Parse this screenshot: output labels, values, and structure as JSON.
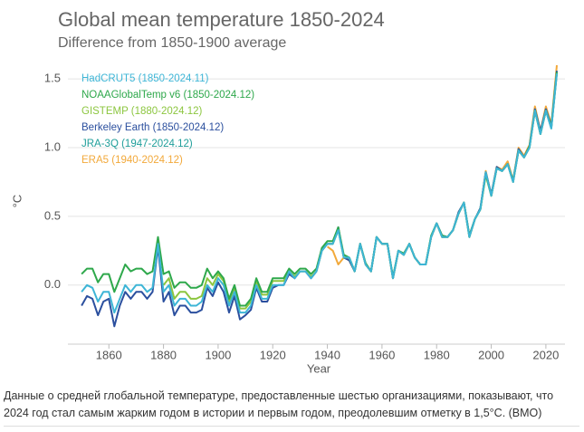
{
  "chart_data": {
    "type": "line",
    "title": "Global mean temperature 1850-2024",
    "subtitle": "Difference from 1850-1900 average",
    "xlabel": "Year",
    "ylabel": "°C",
    "x": [
      1850,
      1852,
      1854,
      1856,
      1858,
      1860,
      1862,
      1864,
      1866,
      1868,
      1870,
      1872,
      1874,
      1876,
      1878,
      1880,
      1882,
      1884,
      1886,
      1888,
      1890,
      1892,
      1894,
      1896,
      1898,
      1900,
      1902,
      1904,
      1906,
      1908,
      1910,
      1912,
      1914,
      1916,
      1918,
      1920,
      1922,
      1924,
      1926,
      1928,
      1930,
      1932,
      1934,
      1936,
      1938,
      1940,
      1942,
      1944,
      1946,
      1948,
      1950,
      1952,
      1954,
      1956,
      1958,
      1960,
      1962,
      1964,
      1966,
      1968,
      1970,
      1972,
      1974,
      1976,
      1978,
      1980,
      1982,
      1984,
      1986,
      1988,
      1990,
      1992,
      1994,
      1996,
      1998,
      2000,
      2002,
      2004,
      2006,
      2008,
      2010,
      2012,
      2014,
      2016,
      2018,
      2020,
      2022,
      2024
    ],
    "series": [
      {
        "name": "HadCRUT5 (1850-2024.11)",
        "color": "#3db5d6",
        "values": [
          -0.05,
          0.0,
          -0.02,
          -0.12,
          -0.05,
          -0.05,
          -0.2,
          -0.1,
          0.0,
          -0.05,
          0.0,
          0.0,
          -0.05,
          -0.02,
          0.3,
          -0.05,
          0.0,
          -0.15,
          -0.1,
          -0.1,
          -0.15,
          -0.15,
          -0.12,
          0.0,
          -0.05,
          0.05,
          0.0,
          -0.15,
          -0.05,
          -0.2,
          -0.2,
          -0.15,
          0.0,
          -0.1,
          -0.1,
          0.0,
          0.0,
          0.0,
          0.1,
          0.05,
          0.1,
          0.1,
          0.05,
          0.1,
          0.25,
          0.3,
          0.3,
          0.4,
          0.2,
          0.2,
          0.1,
          0.3,
          0.15,
          0.1,
          0.35,
          0.3,
          0.3,
          0.05,
          0.25,
          0.22,
          0.3,
          0.2,
          0.15,
          0.15,
          0.35,
          0.45,
          0.35,
          0.35,
          0.4,
          0.52,
          0.6,
          0.35,
          0.48,
          0.55,
          0.82,
          0.65,
          0.85,
          0.83,
          0.88,
          0.75,
          0.98,
          0.93,
          1.0,
          1.27,
          1.1,
          1.27,
          1.14,
          1.54
        ]
      },
      {
        "name": "NOAAGlobalTemp v6 (1850-2024.12)",
        "color": "#2ea84b",
        "values": [
          0.08,
          0.12,
          0.12,
          0.02,
          0.08,
          0.08,
          -0.05,
          0.05,
          0.15,
          0.1,
          0.12,
          0.12,
          0.08,
          0.1,
          0.35,
          0.08,
          0.1,
          -0.02,
          0.02,
          0.02,
          -0.02,
          -0.02,
          0.0,
          0.12,
          0.05,
          0.1,
          0.05,
          -0.1,
          0.0,
          -0.15,
          -0.15,
          -0.1,
          0.05,
          -0.05,
          -0.05,
          0.05,
          0.05,
          0.05,
          0.12,
          0.08,
          0.12,
          0.12,
          0.08,
          0.12,
          0.27,
          0.32,
          0.32,
          0.42,
          0.22,
          0.2,
          0.1,
          0.3,
          0.16,
          0.1,
          0.35,
          0.3,
          0.3,
          0.06,
          0.25,
          0.23,
          0.3,
          0.2,
          0.15,
          0.15,
          0.36,
          0.45,
          0.36,
          0.35,
          0.4,
          0.52,
          0.6,
          0.36,
          0.48,
          0.55,
          0.81,
          0.65,
          0.85,
          0.83,
          0.88,
          0.76,
          0.98,
          0.93,
          1.01,
          1.27,
          1.1,
          1.27,
          1.15,
          1.55
        ]
      },
      {
        "name": "GISTEMP (1880-2024.12)",
        "color": "#8cc63f",
        "values": [
          null,
          null,
          null,
          null,
          null,
          null,
          null,
          null,
          null,
          null,
          null,
          null,
          null,
          null,
          null,
          0.0,
          0.05,
          -0.1,
          -0.05,
          -0.05,
          -0.1,
          -0.1,
          -0.08,
          0.05,
          0.0,
          0.08,
          0.03,
          -0.12,
          -0.02,
          -0.17,
          -0.17,
          -0.12,
          0.03,
          -0.07,
          -0.07,
          0.03,
          0.03,
          0.03,
          0.1,
          0.06,
          0.1,
          0.1,
          0.06,
          0.1,
          0.25,
          0.3,
          0.3,
          0.4,
          0.2,
          0.2,
          0.1,
          0.3,
          0.15,
          0.1,
          0.35,
          0.3,
          0.3,
          0.05,
          0.25,
          0.22,
          0.3,
          0.2,
          0.15,
          0.15,
          0.35,
          0.45,
          0.35,
          0.35,
          0.4,
          0.52,
          0.6,
          0.35,
          0.48,
          0.55,
          0.8,
          0.65,
          0.85,
          0.83,
          0.88,
          0.75,
          0.98,
          0.93,
          1.0,
          1.27,
          1.1,
          1.27,
          1.15,
          1.55
        ]
      },
      {
        "name": "Berkeley Earth (1850-2024.12)",
        "color": "#2b4f9e",
        "values": [
          -0.15,
          -0.08,
          -0.1,
          -0.22,
          -0.12,
          -0.1,
          -0.3,
          -0.15,
          -0.05,
          -0.1,
          -0.05,
          -0.05,
          -0.1,
          -0.05,
          0.28,
          -0.12,
          -0.05,
          -0.22,
          -0.15,
          -0.15,
          -0.2,
          -0.2,
          -0.18,
          -0.02,
          -0.08,
          0.02,
          -0.05,
          -0.2,
          -0.08,
          -0.25,
          -0.22,
          -0.18,
          -0.02,
          -0.12,
          -0.12,
          -0.02,
          0.0,
          0.0,
          0.08,
          0.05,
          0.1,
          0.1,
          0.05,
          0.1,
          0.25,
          0.3,
          0.3,
          0.42,
          0.2,
          0.18,
          0.1,
          0.3,
          0.15,
          0.1,
          0.35,
          0.3,
          0.3,
          0.05,
          0.25,
          0.22,
          0.3,
          0.2,
          0.15,
          0.15,
          0.35,
          0.45,
          0.36,
          0.35,
          0.4,
          0.53,
          0.6,
          0.36,
          0.48,
          0.56,
          0.82,
          0.66,
          0.86,
          0.83,
          0.88,
          0.76,
          0.99,
          0.93,
          1.01,
          1.28,
          1.12,
          1.28,
          1.16,
          1.56
        ]
      },
      {
        "name": "JRA-3Q (1947-2024.12)",
        "color": "#1f9e9a",
        "values": [
          null,
          null,
          null,
          null,
          null,
          null,
          null,
          null,
          null,
          null,
          null,
          null,
          null,
          null,
          null,
          null,
          null,
          null,
          null,
          null,
          null,
          null,
          null,
          null,
          null,
          null,
          null,
          null,
          null,
          null,
          null,
          null,
          null,
          null,
          null,
          null,
          null,
          null,
          null,
          null,
          null,
          null,
          null,
          null,
          null,
          null,
          null,
          null,
          null,
          0.2,
          0.1,
          0.3,
          0.15,
          0.1,
          0.35,
          0.3,
          0.3,
          0.05,
          0.25,
          0.22,
          0.3,
          0.2,
          0.15,
          0.15,
          0.35,
          0.45,
          0.35,
          0.35,
          0.4,
          0.52,
          0.6,
          0.35,
          0.48,
          0.55,
          0.82,
          0.65,
          0.85,
          0.83,
          0.88,
          0.75,
          0.98,
          0.93,
          1.0,
          1.27,
          1.1,
          1.27,
          1.14,
          1.54
        ]
      },
      {
        "name": "ERA5 (1940-2024.12)",
        "color": "#f2a93b",
        "values": [
          null,
          null,
          null,
          null,
          null,
          null,
          null,
          null,
          null,
          null,
          null,
          null,
          null,
          null,
          null,
          null,
          null,
          null,
          null,
          null,
          null,
          null,
          null,
          null,
          null,
          null,
          null,
          null,
          null,
          null,
          null,
          null,
          null,
          null,
          null,
          null,
          null,
          null,
          null,
          null,
          null,
          null,
          null,
          null,
          null,
          0.28,
          0.25,
          0.15,
          0.2,
          0.18,
          0.1,
          0.3,
          0.15,
          0.1,
          0.35,
          0.3,
          0.3,
          0.05,
          0.25,
          0.22,
          0.3,
          0.2,
          0.15,
          0.15,
          0.35,
          0.45,
          0.35,
          0.35,
          0.4,
          0.52,
          0.6,
          0.35,
          0.48,
          0.55,
          0.83,
          0.65,
          0.86,
          0.84,
          0.9,
          0.76,
          1.0,
          0.94,
          1.02,
          1.3,
          1.12,
          1.3,
          1.17,
          1.6
        ]
      }
    ],
    "xlim": [
      1845,
      2027
    ],
    "xticks": [
      1860,
      1880,
      1900,
      1920,
      1940,
      1960,
      1980,
      2000,
      2020
    ],
    "ylim": [
      -0.43,
      1.6
    ],
    "yticks": [
      {
        "value": 0,
        "label": "0.0"
      },
      0.5,
      {
        "value": 1,
        "label": "1.0"
      },
      1.5
    ],
    "grid": true,
    "legend": "upper left"
  },
  "caption": "Данные о средней глобальной температуре, предоставленные шестью организациями, показывают, что 2024 год стал самым жарким годом в истории и первым годом, преодолевшим отметку в 1,5°С. (ВМО)"
}
